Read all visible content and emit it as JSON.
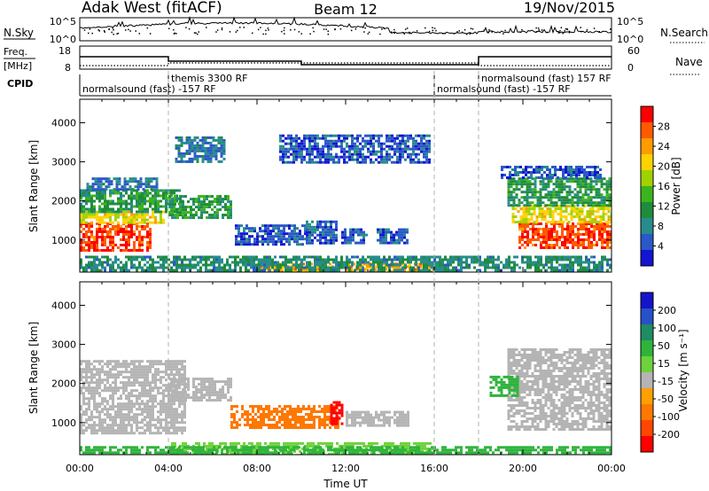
{
  "header": {
    "station": "Adak West (fitACF)",
    "beam": "Beam 12",
    "date": "19/Nov/2015"
  },
  "strips": {
    "nsky": {
      "label": "N.Sky",
      "ticks": [
        "10^5",
        "10^0"
      ]
    },
    "nsearch": {
      "label": "N.Search",
      "ticks": [
        "10^5",
        "10^0"
      ]
    },
    "freq": {
      "label_top": "Freq.",
      "label_unit": "[MHz]",
      "ticks": [
        "18",
        "8"
      ]
    },
    "nave": {
      "label": "Nave",
      "ticks": [
        "60",
        "0"
      ]
    },
    "cpid": {
      "label": "CPID",
      "segments": [
        {
          "start": 0,
          "end": 4,
          "text": "normalsound (fast) -157 RF"
        },
        {
          "start": 4,
          "end": 16,
          "text": "themis 3300 RF"
        },
        {
          "start": 16,
          "end": 18,
          "text": "normalsound (fast) -157 RF"
        },
        {
          "start": 18,
          "end": 24,
          "text": "normalsound (fast) 157 RF"
        }
      ]
    }
  },
  "colorbars": {
    "power": {
      "label": "Power [dB]",
      "ticks": [
        "28",
        "24",
        "20",
        "16",
        "12",
        "8",
        "4"
      ],
      "colors": [
        "#ff0000",
        "#ff5a00",
        "#ff9c00",
        "#ffd200",
        "#a0d200",
        "#3cb41e",
        "#1e8c3c",
        "#288c8c",
        "#2a58c8",
        "#1414d2"
      ]
    },
    "velocity": {
      "label": "Velocity [m s⁻¹]",
      "ticks": [
        "200",
        "100",
        "50",
        "15",
        "-15",
        "-50",
        "-100",
        "-200"
      ],
      "colors": [
        "#1414c8",
        "#2850c8",
        "#1e8c64",
        "#2eb43c",
        "#6ed23c",
        "#b4b4b4",
        "#ffa000",
        "#ff7800",
        "#ff4600",
        "#ff0000"
      ]
    }
  },
  "chart_data": [
    {
      "type": "heatmap",
      "title": "Power",
      "ylabel": "Slant Range [km]",
      "xlim": [
        0,
        24
      ],
      "ylim": [
        180,
        4600
      ],
      "y_ticks": [
        1000,
        2000,
        3000,
        4000
      ],
      "colorbar": "power",
      "regions": [
        {
          "t0": 0.0,
          "t1": 3.2,
          "r0": 750,
          "r1": 1450,
          "value": 28
        },
        {
          "t0": 0.0,
          "t1": 3.8,
          "r0": 1450,
          "r1": 1750,
          "value": 20
        },
        {
          "t0": 0.0,
          "t1": 4.6,
          "r0": 1750,
          "r1": 2300,
          "value": 12
        },
        {
          "t0": 0.3,
          "t1": 3.5,
          "r0": 2300,
          "r1": 2600,
          "value": 8
        },
        {
          "t0": 4.0,
          "t1": 6.8,
          "r0": 1600,
          "r1": 2150,
          "value": 12
        },
        {
          "t0": 7.0,
          "t1": 10.2,
          "r0": 900,
          "r1": 1400,
          "value": 6
        },
        {
          "t0": 10.2,
          "t1": 11.6,
          "r0": 950,
          "r1": 1500,
          "value": 6
        },
        {
          "t0": 11.8,
          "t1": 13.0,
          "r0": 950,
          "r1": 1300,
          "value": 6
        },
        {
          "t0": 13.4,
          "t1": 14.8,
          "r0": 950,
          "r1": 1300,
          "value": 6
        },
        {
          "t0": 8.0,
          "t1": 16.0,
          "r0": 180,
          "r1": 420,
          "value": 24
        },
        {
          "t0": 0.0,
          "t1": 24.0,
          "r0": 180,
          "r1": 600,
          "value": 10
        },
        {
          "t0": 19.8,
          "t1": 24.0,
          "r0": 800,
          "r1": 1450,
          "value": 28
        },
        {
          "t0": 19.5,
          "t1": 24.0,
          "r0": 1450,
          "r1": 1900,
          "value": 20
        },
        {
          "t0": 19.3,
          "t1": 24.0,
          "r0": 1900,
          "r1": 2600,
          "value": 12
        },
        {
          "t0": 19.0,
          "t1": 23.5,
          "r0": 2600,
          "r1": 2900,
          "value": 6
        },
        {
          "t0": 4.3,
          "t1": 6.5,
          "r0": 3000,
          "r1": 3650,
          "value": 8
        },
        {
          "t0": 9.0,
          "t1": 15.8,
          "r0": 3000,
          "r1": 3700,
          "value": 6
        }
      ]
    },
    {
      "type": "heatmap",
      "title": "Velocity",
      "ylabel": "Slant Range [km]",
      "xlabel": "Time UT",
      "xlim": [
        0,
        24
      ],
      "ylim": [
        180,
        4600
      ],
      "x_ticks": [
        "00:00",
        "04:00",
        "08:00",
        "12:00",
        "16:00",
        "20:00",
        "00:00"
      ],
      "y_ticks": [
        1000,
        2000,
        3000,
        4000
      ],
      "colorbar": "velocity",
      "regions": [
        {
          "t0": 0.0,
          "t1": 4.8,
          "r0": 750,
          "r1": 2600,
          "value": 0
        },
        {
          "t0": 4.0,
          "t1": 6.8,
          "r0": 1600,
          "r1": 2150,
          "value": 0
        },
        {
          "t0": 6.8,
          "t1": 11.7,
          "r0": 850,
          "r1": 1450,
          "value": -70
        },
        {
          "t0": 11.3,
          "t1": 11.8,
          "r0": 1000,
          "r1": 1550,
          "value": -220
        },
        {
          "t0": 12.0,
          "t1": 14.8,
          "r0": 900,
          "r1": 1300,
          "value": 0
        },
        {
          "t0": 19.3,
          "t1": 24.0,
          "r0": 800,
          "r1": 2900,
          "value": 0
        },
        {
          "t0": 4.0,
          "t1": 16.0,
          "r0": 180,
          "r1": 500,
          "value": 20
        },
        {
          "t0": 0.0,
          "t1": 24.0,
          "r0": 180,
          "r1": 400,
          "value": 40
        },
        {
          "t0": 18.5,
          "t1": 19.8,
          "r0": 1700,
          "r1": 2200,
          "value": 40
        }
      ]
    }
  ]
}
